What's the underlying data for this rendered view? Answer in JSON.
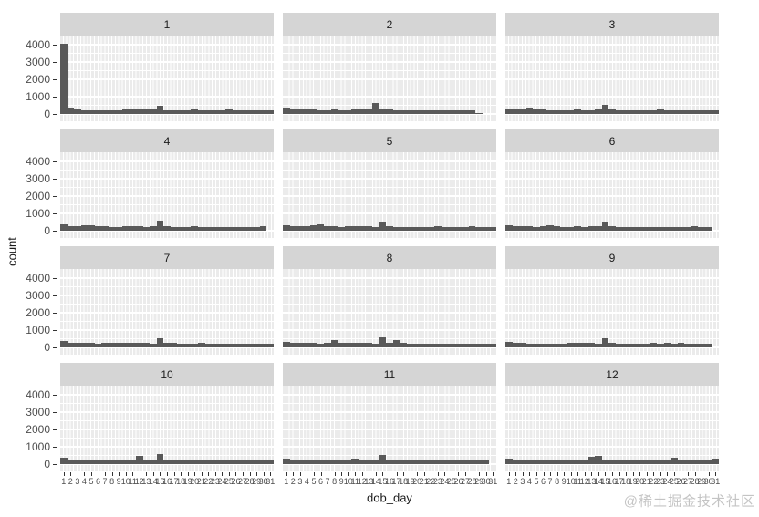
{
  "figure": {
    "watermark": "@稀土掘金技术社区"
  },
  "style": {
    "bar_color": "#595959",
    "panel_bg": "#EBEBEB",
    "strip_bg": "#D5D5D5",
    "grid_color": "#FFFFFF",
    "axis_text_color": "#4D4D4D",
    "title_text_color": "#1A1A1A",
    "tick_color": "#333333",
    "watermark_color": "#C4C4C4",
    "background": "#FFFFFF"
  },
  "chart_data": {
    "type": "bar",
    "title": "",
    "xlabel": "dob_day",
    "ylabel": "count",
    "facet_variable_values": [
      "1",
      "2",
      "3",
      "4",
      "5",
      "6",
      "7",
      "8",
      "9",
      "10",
      "11",
      "12"
    ],
    "x": [
      1,
      2,
      3,
      4,
      5,
      6,
      7,
      8,
      9,
      10,
      11,
      12,
      13,
      14,
      15,
      16,
      17,
      18,
      19,
      20,
      21,
      22,
      23,
      24,
      25,
      26,
      27,
      28,
      29,
      30,
      31
    ],
    "ylim": [
      0,
      4300
    ],
    "y_major_ticks": [
      0,
      1000,
      2000,
      3000,
      4000
    ],
    "y_minor_ticks": [
      500,
      1500,
      2500,
      3500
    ],
    "grid": true,
    "legend": "none",
    "layout": "facet_wrap 4 rows x 3 cols, x axis labels only on bottom row, y axis labels only on left column",
    "series": [
      {
        "name": "1",
        "values": [
          4050,
          360,
          250,
          230,
          225,
          235,
          230,
          235,
          225,
          250,
          310,
          250,
          240,
          250,
          480,
          235,
          225,
          230,
          220,
          265,
          215,
          210,
          220,
          205,
          240,
          210,
          200,
          215,
          205,
          210,
          195
        ]
      },
      {
        "name": "2",
        "values": [
          370,
          330,
          270,
          250,
          240,
          235,
          230,
          245,
          230,
          225,
          245,
          255,
          265,
          620,
          255,
          240,
          235,
          230,
          225,
          235,
          220,
          215,
          225,
          210,
          215,
          205,
          200,
          195,
          70,
          0,
          0
        ]
      },
      {
        "name": "3",
        "values": [
          330,
          280,
          305,
          350,
          260,
          250,
          235,
          225,
          230,
          220,
          245,
          235,
          225,
          240,
          520,
          245,
          230,
          225,
          230,
          220,
          235,
          215,
          255,
          220,
          210,
          215,
          205,
          200,
          195,
          190,
          235
        ]
      },
      {
        "name": "4",
        "values": [
          345,
          280,
          255,
          305,
          310,
          250,
          240,
          230,
          225,
          245,
          270,
          250,
          235,
          245,
          560,
          245,
          235,
          230,
          225,
          255,
          230,
          220,
          225,
          215,
          220,
          210,
          205,
          215,
          230,
          240,
          0
        ]
      },
      {
        "name": "5",
        "values": [
          335,
          270,
          250,
          240,
          300,
          350,
          260,
          240,
          230,
          240,
          255,
          260,
          240,
          230,
          520,
          240,
          230,
          225,
          220,
          230,
          215,
          230,
          255,
          215,
          220,
          235,
          210,
          250,
          225,
          215,
          230
        ]
      },
      {
        "name": "6",
        "values": [
          325,
          260,
          240,
          250,
          230,
          280,
          330,
          240,
          230,
          235,
          245,
          225,
          265,
          285,
          520,
          240,
          230,
          220,
          215,
          225,
          210,
          215,
          220,
          205,
          235,
          215,
          205,
          245,
          210,
          215,
          0
        ]
      },
      {
        "name": "7",
        "values": [
          345,
          280,
          260,
          250,
          240,
          230,
          260,
          250,
          240,
          285,
          260,
          250,
          240,
          230,
          545,
          240,
          265,
          230,
          225,
          235,
          240,
          220,
          215,
          220,
          210,
          215,
          205,
          230,
          225,
          215,
          220
        ]
      },
      {
        "name": "8",
        "values": [
          335,
          270,
          250,
          240,
          260,
          230,
          240,
          420,
          260,
          240,
          250,
          285,
          240,
          230,
          600,
          250,
          400,
          240,
          230,
          225,
          215,
          220,
          210,
          215,
          205,
          210,
          200,
          215,
          210,
          205,
          215
        ]
      },
      {
        "name": "9",
        "values": [
          305,
          260,
          240,
          230,
          225,
          230,
          220,
          225,
          235,
          240,
          285,
          260,
          240,
          230,
          545,
          240,
          230,
          225,
          220,
          230,
          215,
          240,
          210,
          245,
          215,
          240,
          205,
          210,
          200,
          195,
          0
        ]
      },
      {
        "name": "10",
        "values": [
          345,
          290,
          260,
          250,
          240,
          250,
          240,
          235,
          240,
          260,
          245,
          460,
          250,
          240,
          560,
          245,
          235,
          260,
          240,
          230,
          225,
          230,
          220,
          215,
          220,
          210,
          215,
          205,
          230,
          225,
          215
        ]
      },
      {
        "name": "11",
        "values": [
          325,
          270,
          250,
          240,
          230,
          240,
          230,
          225,
          260,
          285,
          330,
          260,
          240,
          230,
          520,
          240,
          230,
          225,
          220,
          215,
          220,
          210,
          240,
          215,
          230,
          210,
          205,
          215,
          240,
          210,
          0
        ]
      },
      {
        "name": "12",
        "values": [
          335,
          270,
          250,
          240,
          230,
          235,
          225,
          230,
          220,
          230,
          240,
          250,
          420,
          480,
          245,
          230,
          225,
          220,
          215,
          225,
          215,
          210,
          215,
          205,
          350,
          215,
          205,
          210,
          215,
          225,
          310
        ]
      }
    ]
  }
}
